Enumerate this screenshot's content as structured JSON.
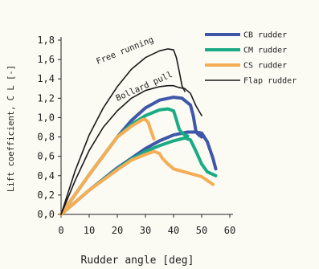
{
  "chart_data": {
    "type": "line",
    "xlabel": "Rudder angle [deg]",
    "ylabel": "Lift coefficient, C L [-]",
    "xlim": [
      0,
      60
    ],
    "ylim": [
      0,
      1.8
    ],
    "xticks": [
      0,
      10,
      20,
      30,
      40,
      50,
      60
    ],
    "xtick_labels": [
      "0",
      "10",
      "20",
      "30",
      "40",
      "50",
      "60"
    ],
    "yticks": [
      0,
      0.2,
      0.4,
      0.6,
      0.8,
      1.0,
      1.2,
      1.4,
      1.6,
      1.8
    ],
    "ytick_labels": [
      "0,0",
      "0,2",
      "0,4",
      "0,6",
      "0,8",
      "1,0",
      "1,2",
      "1,4",
      "1,6",
      "1,8"
    ],
    "grid": false,
    "legend_position": "top-right",
    "annotations": [
      {
        "text": "Free running",
        "x": 13,
        "y": 1.55,
        "angle": -22
      },
      {
        "text": "Bollard pull",
        "x": 20,
        "y": 1.17,
        "angle": -24
      }
    ],
    "series": [
      {
        "name": "CB rudder",
        "color": "#3f57a8",
        "width": 4,
        "curves": [
          [
            [
              0,
              0
            ],
            [
              10,
              0.41
            ],
            [
              20,
              0.8
            ],
            [
              25,
              0.97
            ],
            [
              30,
              1.1
            ],
            [
              35,
              1.18
            ],
            [
              40,
              1.21
            ],
            [
              43,
              1.2
            ],
            [
              46,
              1.13
            ],
            [
              47,
              1.02
            ],
            [
              48,
              0.85
            ],
            [
              49,
              0.82
            ],
            [
              50,
              0.8
            ]
          ],
          [
            [
              0,
              0
            ],
            [
              10,
              0.25
            ],
            [
              20,
              0.48
            ],
            [
              25,
              0.58
            ],
            [
              30,
              0.68
            ],
            [
              35,
              0.76
            ],
            [
              40,
              0.82
            ],
            [
              45,
              0.85
            ],
            [
              48,
              0.85
            ],
            [
              50,
              0.84
            ],
            [
              52,
              0.75
            ],
            [
              54,
              0.58
            ],
            [
              55,
              0.47
            ]
          ]
        ]
      },
      {
        "name": "CM rudder",
        "color": "#1bab84",
        "width": 4,
        "curves": [
          [
            [
              0,
              0
            ],
            [
              10,
              0.41
            ],
            [
              20,
              0.8
            ],
            [
              25,
              0.93
            ],
            [
              30,
              1.02
            ],
            [
              35,
              1.08
            ],
            [
              38,
              1.09
            ],
            [
              40,
              1.07
            ],
            [
              41,
              0.98
            ],
            [
              42,
              0.88
            ],
            [
              43,
              0.84
            ],
            [
              44,
              0.82
            ],
            [
              45,
              0.81
            ]
          ],
          [
            [
              0,
              0
            ],
            [
              10,
              0.25
            ],
            [
              20,
              0.47
            ],
            [
              25,
              0.57
            ],
            [
              30,
              0.65
            ],
            [
              35,
              0.71
            ],
            [
              40,
              0.76
            ],
            [
              44,
              0.79
            ],
            [
              46,
              0.77
            ],
            [
              48,
              0.65
            ],
            [
              50,
              0.52
            ],
            [
              52,
              0.44
            ],
            [
              55,
              0.4
            ]
          ]
        ]
      },
      {
        "name": "CS rudder",
        "color": "#f5ae55",
        "width": 4,
        "curves": [
          [
            [
              0,
              0
            ],
            [
              10,
              0.41
            ],
            [
              20,
              0.8
            ],
            [
              25,
              0.91
            ],
            [
              29,
              0.98
            ],
            [
              30,
              0.98
            ],
            [
              31,
              0.95
            ],
            [
              32,
              0.86
            ],
            [
              33,
              0.78
            ]
          ],
          [
            [
              0,
              0
            ],
            [
              10,
              0.25
            ],
            [
              20,
              0.46
            ],
            [
              25,
              0.56
            ],
            [
              30,
              0.62
            ],
            [
              33,
              0.65
            ],
            [
              35,
              0.63
            ],
            [
              36,
              0.58
            ],
            [
              38,
              0.52
            ],
            [
              40,
              0.47
            ],
            [
              45,
              0.43
            ],
            [
              50,
              0.39
            ],
            [
              54,
              0.31
            ]
          ]
        ]
      },
      {
        "name": "Flap rudder",
        "color": "#1a1a1a",
        "width": 1.6,
        "curves": [
          [
            [
              0,
              0
            ],
            [
              5,
              0.45
            ],
            [
              10,
              0.82
            ],
            [
              15,
              1.1
            ],
            [
              20,
              1.32
            ],
            [
              25,
              1.5
            ],
            [
              30,
              1.62
            ],
            [
              35,
              1.69
            ],
            [
              38,
              1.71
            ],
            [
              40,
              1.7
            ],
            [
              41,
              1.62
            ],
            [
              42,
              1.48
            ],
            [
              43,
              1.33
            ],
            [
              44,
              1.27
            ]
          ],
          [
            [
              0,
              0
            ],
            [
              5,
              0.35
            ],
            [
              10,
              0.66
            ],
            [
              15,
              0.9
            ],
            [
              20,
              1.07
            ],
            [
              25,
              1.2
            ],
            [
              30,
              1.28
            ],
            [
              35,
              1.32
            ],
            [
              38,
              1.33
            ],
            [
              40,
              1.33
            ],
            [
              42,
              1.31
            ],
            [
              44,
              1.3
            ],
            [
              46,
              1.25
            ],
            [
              48,
              1.12
            ],
            [
              50,
              1.02
            ]
          ]
        ]
      }
    ]
  }
}
